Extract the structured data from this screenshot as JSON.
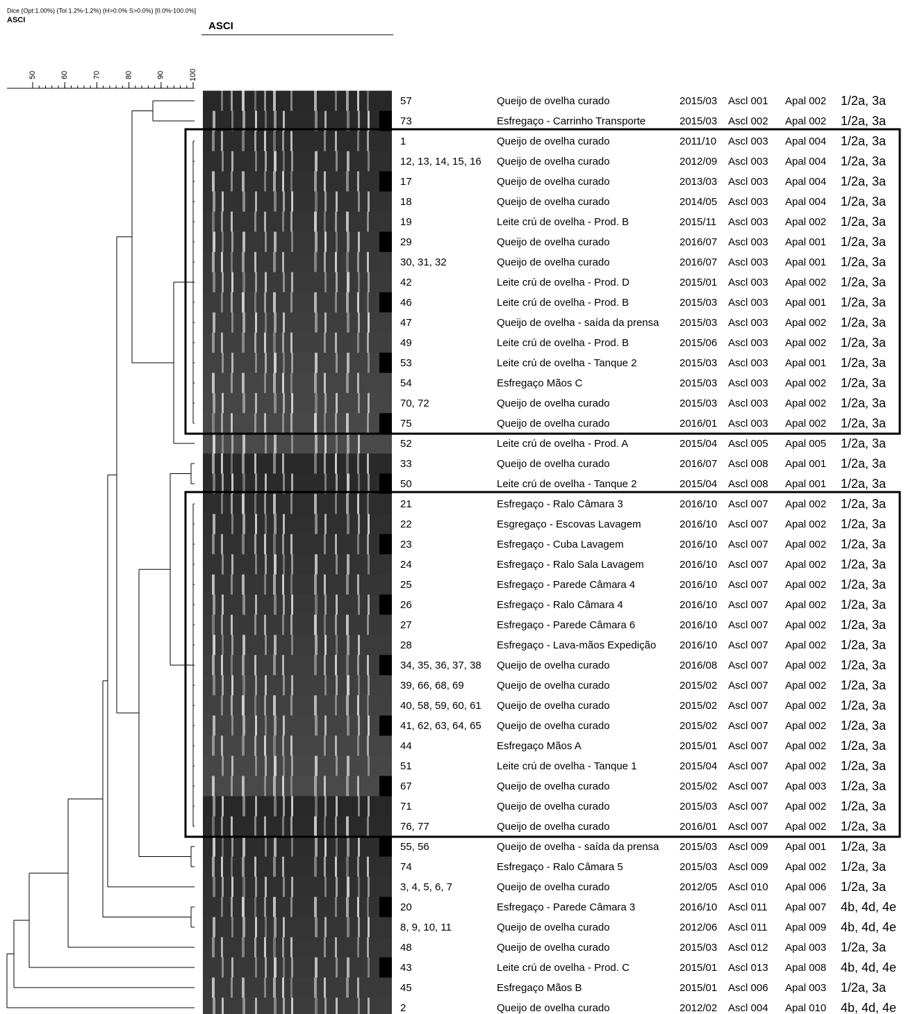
{
  "header": {
    "method": "Dice (Opt:1.00%) (Tol 1.2%-1.2%) (H>0.0% S>0.0%) [0.0%-100.0%]",
    "left_title": "ASCI",
    "column_title": "ASCI"
  },
  "scale": {
    "ticks": [
      50,
      60,
      70,
      80,
      90,
      100
    ]
  },
  "rows": [
    [
      "57",
      "Queijo de ovelha curado",
      "2015/03",
      "Ascl 001",
      "Apal 002",
      "1/2a, 3a"
    ],
    [
      "73",
      "Esfregaço - Carrinho Transporte",
      "2015/03",
      "Ascl 002",
      "Apal 002",
      "1/2a, 3a"
    ],
    [
      "1",
      "Queijo de ovelha curado",
      "2011/10",
      "Ascl 003",
      "Apal 004",
      "1/2a, 3a"
    ],
    [
      "12, 13, 14, 15, 16",
      "Queijo de ovelha curado",
      "2012/09",
      "Ascl 003",
      "Apal 004",
      "1/2a, 3a"
    ],
    [
      "17",
      "Queijo de ovelha curado",
      "2013/03",
      "Ascl 003",
      "Apal 004",
      "1/2a, 3a"
    ],
    [
      "18",
      "Queijo de ovelha curado",
      "2014/05",
      "Ascl 003",
      "Apal 004",
      "1/2a, 3a"
    ],
    [
      "19",
      "Leite crú de ovelha - Prod. B",
      "2015/11",
      "Ascl 003",
      "Apal 002",
      "1/2a, 3a"
    ],
    [
      "29",
      "Queijo de ovelha curado",
      "2016/07",
      "Ascl 003",
      "Apal 001",
      "1/2a, 3a"
    ],
    [
      "30, 31, 32",
      "Queijo de ovelha curado",
      "2016/07",
      "Ascl 003",
      "Apal 001",
      "1/2a, 3a"
    ],
    [
      "42",
      "Leite crú de ovelha - Prod. D",
      "2015/01",
      "Ascl 003",
      "Apal 002",
      "1/2a, 3a"
    ],
    [
      "46",
      "Leite crú de ovelha - Prod. B",
      "2015/03",
      "Ascl 003",
      "Apal 001",
      "1/2a, 3a"
    ],
    [
      "47",
      "Queijo de ovelha - saída da prensa",
      "2015/03",
      "Ascl 003",
      "Apal 002",
      "1/2a, 3a"
    ],
    [
      "49",
      "Leite crú de ovelha - Prod. B",
      "2015/06",
      "Ascl 003",
      "Apal 002",
      "1/2a, 3a"
    ],
    [
      "53",
      "Leite crú de ovelha - Tanque 2",
      "2015/03",
      "Ascl 003",
      "Apal 001",
      "1/2a, 3a"
    ],
    [
      "54",
      "Esfregaço Mãos C",
      "2015/03",
      "Ascl 003",
      "Apal 002",
      "1/2a, 3a"
    ],
    [
      "70, 72",
      "Queijo de ovelha curado",
      "2015/03",
      "Ascl 003",
      "Apal 002",
      "1/2a, 3a"
    ],
    [
      "75",
      "Queijo de ovelha curado",
      "2016/01",
      "Ascl 003",
      "Apal 002",
      "1/2a, 3a"
    ],
    [
      "52",
      "Leite crú de ovelha - Prod. A",
      "2015/04",
      "Ascl 005",
      "Apal 005",
      "1/2a, 3a"
    ],
    [
      "33",
      "Queijo de ovelha curado",
      "2016/07",
      "Ascl 008",
      "Apal 001",
      "1/2a, 3a"
    ],
    [
      "50",
      "Leite crú de ovelha - Tanque 2",
      "2015/04",
      "Ascl 008",
      "Apal 001",
      "1/2a, 3a"
    ],
    [
      "21",
      "Esfregaço - Ralo Câmara 3",
      "2016/10",
      "Ascl 007",
      "Apal 002",
      "1/2a, 3a"
    ],
    [
      "22",
      "Esgregaço - Escovas Lavagem",
      "2016/10",
      "Ascl 007",
      "Apal 002",
      "1/2a, 3a"
    ],
    [
      "23",
      "Esfregaço - Cuba Lavagem",
      "2016/10",
      "Ascl 007",
      "Apal 002",
      "1/2a, 3a"
    ],
    [
      "24",
      "Esfregaço - Ralo Sala Lavagem",
      "2016/10",
      "Ascl 007",
      "Apal 002",
      "1/2a, 3a"
    ],
    [
      "25",
      "Esfregaço - Parede Câmara 4",
      "2016/10",
      "Ascl 007",
      "Apal 002",
      "1/2a, 3a"
    ],
    [
      "26",
      "Esfregaço - Ralo Câmara 4",
      "2016/10",
      "Ascl 007",
      "Apal 002",
      "1/2a, 3a"
    ],
    [
      "27",
      "Esfregaço - Parede Câmara 6",
      "2016/10",
      "Ascl 007",
      "Apal 002",
      "1/2a, 3a"
    ],
    [
      "28",
      "Esfregaço - Lava-mãos Expedição",
      "2016/10",
      "Ascl 007",
      "Apal 002",
      "1/2a, 3a"
    ],
    [
      "34, 35, 36, 37, 38",
      "Queijo de ovelha curado",
      "2016/08",
      "Ascl 007",
      "Apal 002",
      "1/2a, 3a"
    ],
    [
      "39, 66, 68, 69",
      "Queijo de ovelha curado",
      "2015/02",
      "Ascl 007",
      "Apal 002",
      "1/2a, 3a"
    ],
    [
      "40, 58, 59, 60, 61",
      "Queijo de ovelha curado",
      "2015/02",
      "Ascl 007",
      "Apal 002",
      "1/2a, 3a"
    ],
    [
      "41, 62, 63, 64, 65",
      "Queijo de ovelha curado",
      "2015/02",
      "Ascl 007",
      "Apal 002",
      "1/2a, 3a"
    ],
    [
      "44",
      "Esfregaço Mãos A",
      "2015/01",
      "Ascl 007",
      "Apal 002",
      "1/2a, 3a"
    ],
    [
      "51",
      "Leite crú de ovelha - Tanque 1",
      "2015/04",
      "Ascl 007",
      "Apal 002",
      "1/2a, 3a"
    ],
    [
      "67",
      "Queijo de ovelha curado",
      "2015/02",
      "Ascl 007",
      "Apal 003",
      "1/2a, 3a"
    ],
    [
      "71",
      "Queijo de ovelha curado",
      "2015/03",
      "Ascl 007",
      "Apal 002",
      "1/2a, 3a"
    ],
    [
      "76, 77",
      "Queijo de ovelha curado",
      "2016/01",
      "Ascl 007",
      "Apal 002",
      "1/2a, 3a"
    ],
    [
      "55, 56",
      "Queijo de ovelha - saída da prensa",
      "2015/03",
      "Ascl 009",
      "Apal 001",
      "1/2a, 3a"
    ],
    [
      "74",
      "Esfregaço - Ralo Câmara 5",
      "2015/03",
      "Ascl 009",
      "Apal 002",
      "1/2a, 3a"
    ],
    [
      "3, 4, 5, 6, 7",
      "Queijo de ovelha curado",
      "2012/05",
      "Ascl 010",
      "Apal 006",
      "1/2a, 3a"
    ],
    [
      "20",
      "Esfregaço - Parede Câmara 3",
      "2016/10",
      "Ascl 011",
      "Apal 007",
      "4b, 4d, 4e"
    ],
    [
      "8, 9, 10, 11",
      "Queijo de ovelha curado",
      "2012/06",
      "Ascl 011",
      "Apal 009",
      "4b, 4d, 4e"
    ],
    [
      "48",
      "Queijo de ovelha curado",
      "2015/03",
      "Ascl 012",
      "Apal 003",
      "1/2a, 3a"
    ],
    [
      "43",
      "Leite crú de ovelha - Prod. C",
      "2015/01",
      "Ascl 013",
      "Apal 008",
      "4b, 4d, 4e"
    ],
    [
      "45",
      "Esfregaço Mãos B",
      "2015/01",
      "Ascl 006",
      "Apal 003",
      "1/2a, 3a"
    ],
    [
      "2",
      "Queijo de ovelha curado",
      "2012/02",
      "Ascl 004",
      "Apal 010",
      "4b, 4d, 4e"
    ]
  ]
}
